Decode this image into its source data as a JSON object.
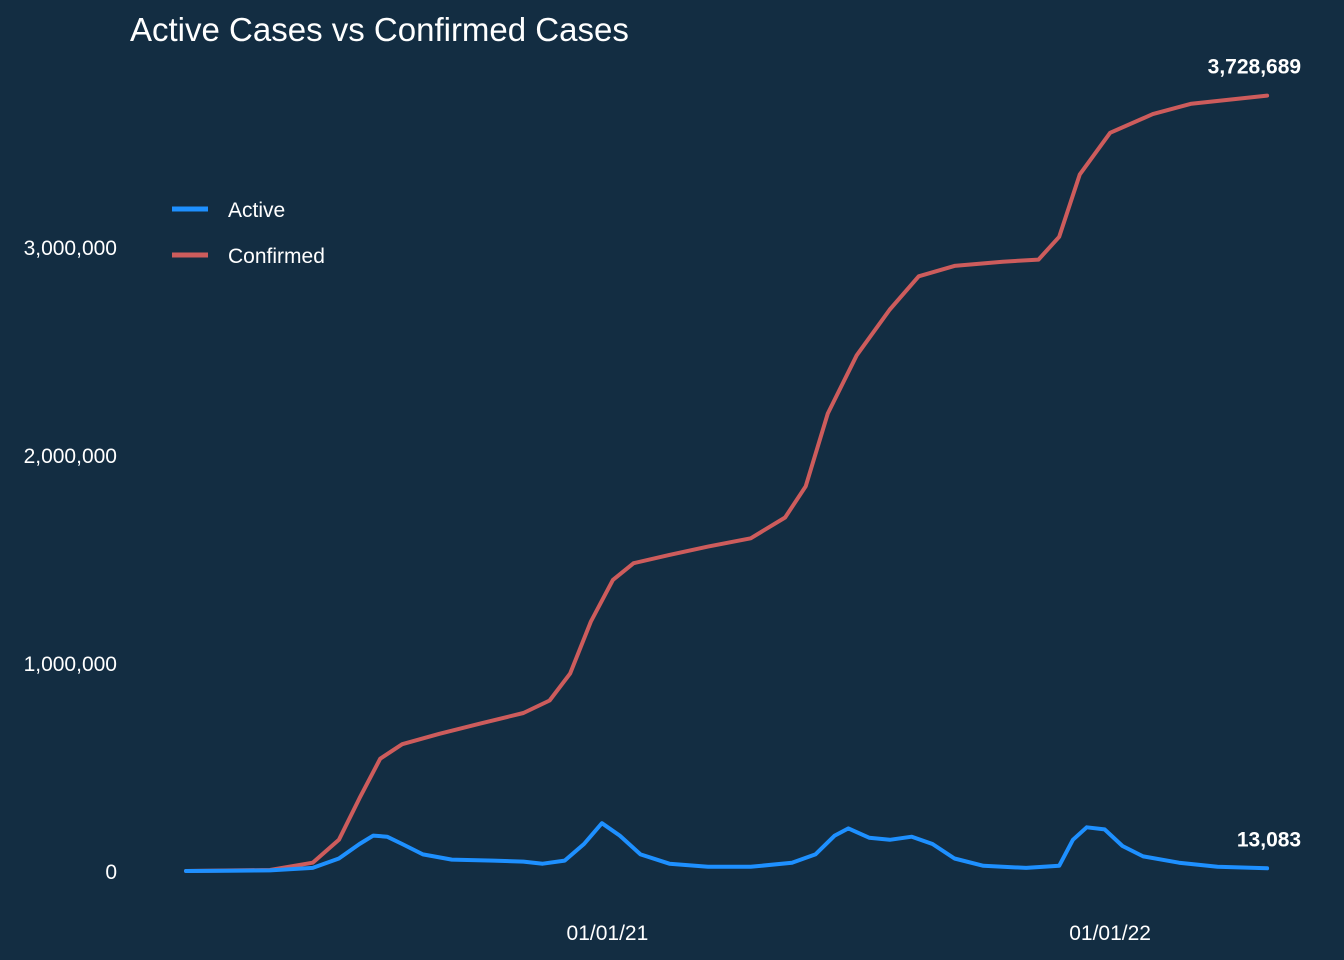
{
  "chart_data": {
    "type": "line",
    "title": "Active Cases vs Confirmed Cases",
    "xlabel": "",
    "ylabel": "",
    "x_axis": {
      "type": "date",
      "range": [
        "2020-03-01",
        "2022-04-30"
      ],
      "ticks": [
        {
          "date": "2021-01-01",
          "label": "01/01/21"
        },
        {
          "date": "2022-01-01",
          "label": "01/01/22"
        }
      ]
    },
    "y_axis": {
      "range": [
        0,
        3900000
      ],
      "ticks": [
        {
          "value": 0,
          "label": "0"
        },
        {
          "value": 1000000,
          "label": "1,000,000"
        },
        {
          "value": 2000000,
          "label": "2,000,000"
        },
        {
          "value": 3000000,
          "label": "3,000,000"
        }
      ]
    },
    "grid": false,
    "legend": {
      "placement": "top-left",
      "entries": [
        {
          "label": "Active",
          "color": "#1e90ff"
        },
        {
          "label": "Confirmed",
          "color": "#cd5c5c"
        }
      ]
    },
    "series": [
      {
        "name": "Active",
        "color": "#1e90ff",
        "points": [
          [
            "2020-03-01",
            0
          ],
          [
            "2020-04-01",
            1000
          ],
          [
            "2020-05-01",
            3000
          ],
          [
            "2020-06-01",
            15000
          ],
          [
            "2020-06-20",
            60000
          ],
          [
            "2020-07-05",
            130000
          ],
          [
            "2020-07-15",
            170000
          ],
          [
            "2020-07-25",
            165000
          ],
          [
            "2020-08-05",
            130000
          ],
          [
            "2020-08-20",
            80000
          ],
          [
            "2020-09-10",
            55000
          ],
          [
            "2020-10-10",
            50000
          ],
          [
            "2020-11-01",
            45000
          ],
          [
            "2020-11-15",
            35000
          ],
          [
            "2020-12-01",
            50000
          ],
          [
            "2020-12-15",
            130000
          ],
          [
            "2020-12-28",
            230000
          ],
          [
            "2021-01-10",
            170000
          ],
          [
            "2021-01-25",
            80000
          ],
          [
            "2021-02-15",
            35000
          ],
          [
            "2021-03-15",
            20000
          ],
          [
            "2021-04-15",
            20000
          ],
          [
            "2021-05-15",
            40000
          ],
          [
            "2021-06-01",
            80000
          ],
          [
            "2021-06-15",
            170000
          ],
          [
            "2021-06-25",
            205000
          ],
          [
            "2021-07-10",
            160000
          ],
          [
            "2021-07-25",
            150000
          ],
          [
            "2021-08-10",
            165000
          ],
          [
            "2021-08-25",
            130000
          ],
          [
            "2021-09-10",
            60000
          ],
          [
            "2021-10-01",
            25000
          ],
          [
            "2021-11-01",
            15000
          ],
          [
            "2021-11-25",
            25000
          ],
          [
            "2021-12-05",
            150000
          ],
          [
            "2021-12-15",
            210000
          ],
          [
            "2021-12-28",
            200000
          ],
          [
            "2022-01-10",
            120000
          ],
          [
            "2022-01-25",
            70000
          ],
          [
            "2022-02-20",
            40000
          ],
          [
            "2022-03-20",
            20000
          ],
          [
            "2022-04-25",
            13083
          ]
        ],
        "end_label": "13,083"
      },
      {
        "name": "Confirmed",
        "color": "#cd5c5c",
        "points": [
          [
            "2020-03-01",
            0
          ],
          [
            "2020-05-01",
            5000
          ],
          [
            "2020-06-01",
            40000
          ],
          [
            "2020-06-20",
            150000
          ],
          [
            "2020-07-05",
            350000
          ],
          [
            "2020-07-20",
            540000
          ],
          [
            "2020-08-05",
            610000
          ],
          [
            "2020-09-01",
            660000
          ],
          [
            "2020-10-01",
            710000
          ],
          [
            "2020-11-01",
            760000
          ],
          [
            "2020-11-20",
            820000
          ],
          [
            "2020-12-05",
            950000
          ],
          [
            "2020-12-20",
            1200000
          ],
          [
            "2021-01-05",
            1400000
          ],
          [
            "2021-01-20",
            1480000
          ],
          [
            "2021-02-15",
            1520000
          ],
          [
            "2021-03-15",
            1560000
          ],
          [
            "2021-04-15",
            1600000
          ],
          [
            "2021-05-10",
            1700000
          ],
          [
            "2021-05-25",
            1850000
          ],
          [
            "2021-06-10",
            2200000
          ],
          [
            "2021-07-01",
            2480000
          ],
          [
            "2021-07-25",
            2700000
          ],
          [
            "2021-08-15",
            2860000
          ],
          [
            "2021-09-10",
            2910000
          ],
          [
            "2021-10-15",
            2930000
          ],
          [
            "2021-11-10",
            2940000
          ],
          [
            "2021-11-25",
            3050000
          ],
          [
            "2021-12-10",
            3350000
          ],
          [
            "2022-01-01",
            3550000
          ],
          [
            "2022-02-01",
            3640000
          ],
          [
            "2022-03-01",
            3690000
          ],
          [
            "2022-04-25",
            3728689
          ]
        ],
        "end_label": "3,728,689"
      }
    ]
  }
}
